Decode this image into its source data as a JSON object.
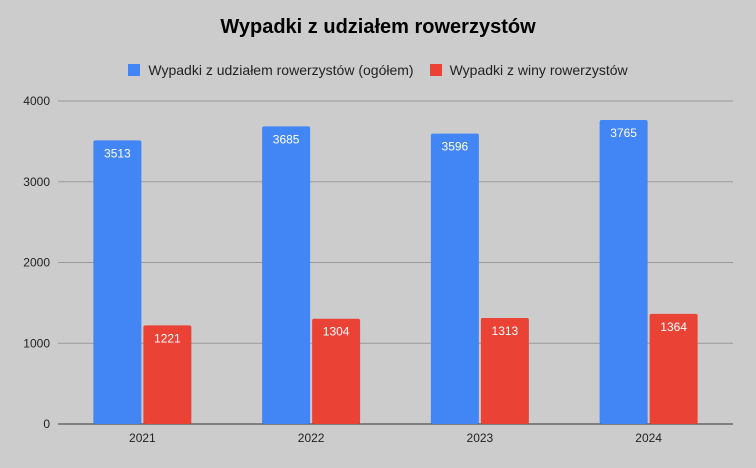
{
  "chart_data": {
    "type": "bar",
    "title": "Wypadki z udziałem rowerzystów",
    "xlabel": "",
    "ylabel": "",
    "categories": [
      "2021",
      "2022",
      "2023",
      "2024"
    ],
    "series": [
      {
        "name": "Wypadki z udziałem rowerzystów (ogółem)",
        "values": [
          3513,
          3685,
          3596,
          3765
        ],
        "color": "#4285f4"
      },
      {
        "name": "Wypadki z winy rowerzystów",
        "values": [
          1221,
          1304,
          1313,
          1364
        ],
        "color": "#ea4335"
      }
    ],
    "ylim": [
      0,
      4000
    ],
    "yticks": [
      0,
      1000,
      2000,
      3000,
      4000
    ],
    "grid": true,
    "legend_position": "top",
    "data_labels": true
  }
}
